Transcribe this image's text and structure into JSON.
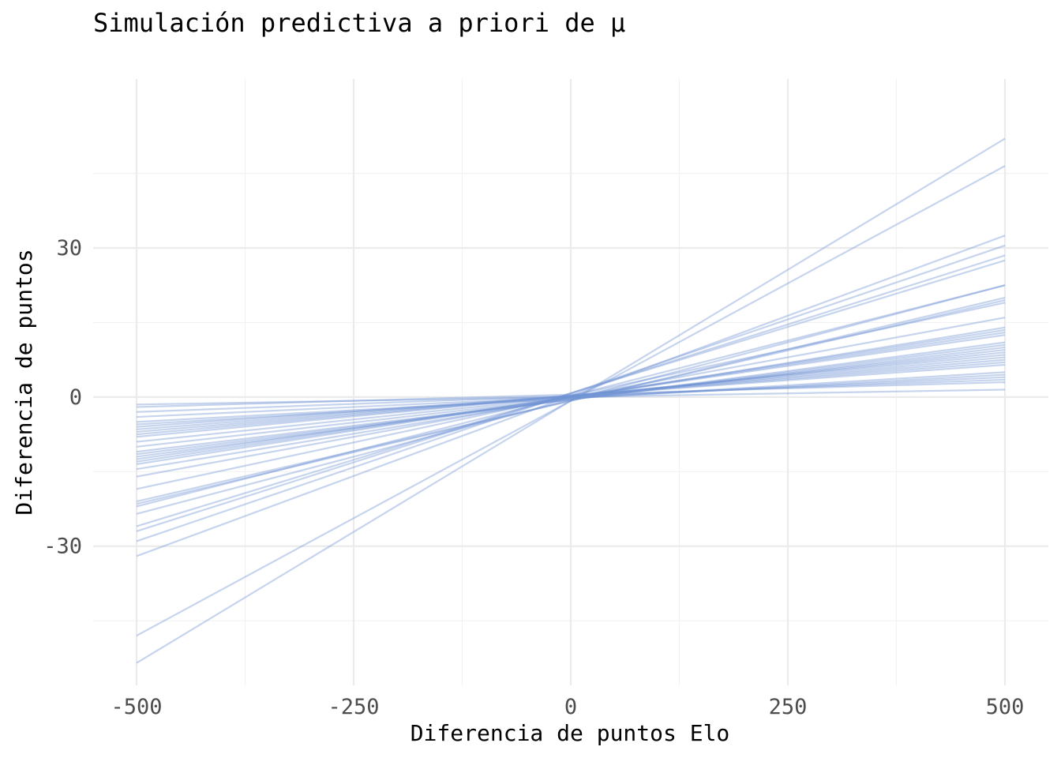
{
  "chart_data": {
    "type": "line",
    "title": "Simulación predictiva a priori de μ",
    "xlabel": "Diferencia de puntos Elo",
    "ylabel": "Diferencia de puntos",
    "xlim": [
      -550,
      550
    ],
    "ylim": [
      -58,
      64
    ],
    "x_ticks": [
      -500,
      -250,
      0,
      250,
      500
    ],
    "x_tick_labels": [
      "-500",
      "-250",
      "0",
      "250",
      "500"
    ],
    "y_ticks": [
      -30,
      0,
      30
    ],
    "y_tick_labels": [
      "-30",
      "0",
      "30"
    ],
    "grid": true,
    "legend": "none",
    "line_color": "#7094d4",
    "line_opacity": 0.4,
    "x": [
      -500,
      500
    ],
    "series": [
      {
        "values": [
          -53.5,
          52.0
        ]
      },
      {
        "values": [
          -48.0,
          46.5
        ]
      },
      {
        "values": [
          -32.0,
          32.5
        ]
      },
      {
        "values": [
          -29.0,
          30.5
        ]
      },
      {
        "values": [
          -27.0,
          28.5
        ]
      },
      {
        "values": [
          -26.0,
          27.5
        ]
      },
      {
        "values": [
          -23.5,
          22.5
        ]
      },
      {
        "values": [
          -22.0,
          22.5
        ]
      },
      {
        "values": [
          -21.5,
          20.0
        ]
      },
      {
        "values": [
          -21.0,
          19.5
        ]
      },
      {
        "values": [
          -18.5,
          19.0
        ]
      },
      {
        "values": [
          -16.0,
          16.0
        ]
      },
      {
        "values": [
          -14.5,
          14.0
        ]
      },
      {
        "values": [
          -13.5,
          13.5
        ]
      },
      {
        "values": [
          -13.0,
          13.0
        ]
      },
      {
        "values": [
          -12.5,
          12.5
        ]
      },
      {
        "values": [
          -12.0,
          11.0
        ]
      },
      {
        "values": [
          -11.5,
          10.5
        ]
      },
      {
        "values": [
          -11.0,
          10.0
        ]
      },
      {
        "values": [
          -10.0,
          9.5
        ]
      },
      {
        "values": [
          -9.0,
          9.0
        ]
      },
      {
        "values": [
          -8.0,
          8.5
        ]
      },
      {
        "values": [
          -7.5,
          8.0
        ]
      },
      {
        "values": [
          -7.0,
          7.5
        ]
      },
      {
        "values": [
          -6.5,
          7.0
        ]
      },
      {
        "values": [
          -6.0,
          6.5
        ]
      },
      {
        "values": [
          -5.5,
          5.0
        ]
      },
      {
        "values": [
          -5.0,
          4.5
        ]
      },
      {
        "values": [
          -4.0,
          4.0
        ]
      },
      {
        "values": [
          -3.0,
          3.5
        ]
      },
      {
        "values": [
          -2.0,
          3.0
        ]
      },
      {
        "values": [
          -1.5,
          1.5
        ]
      }
    ]
  }
}
